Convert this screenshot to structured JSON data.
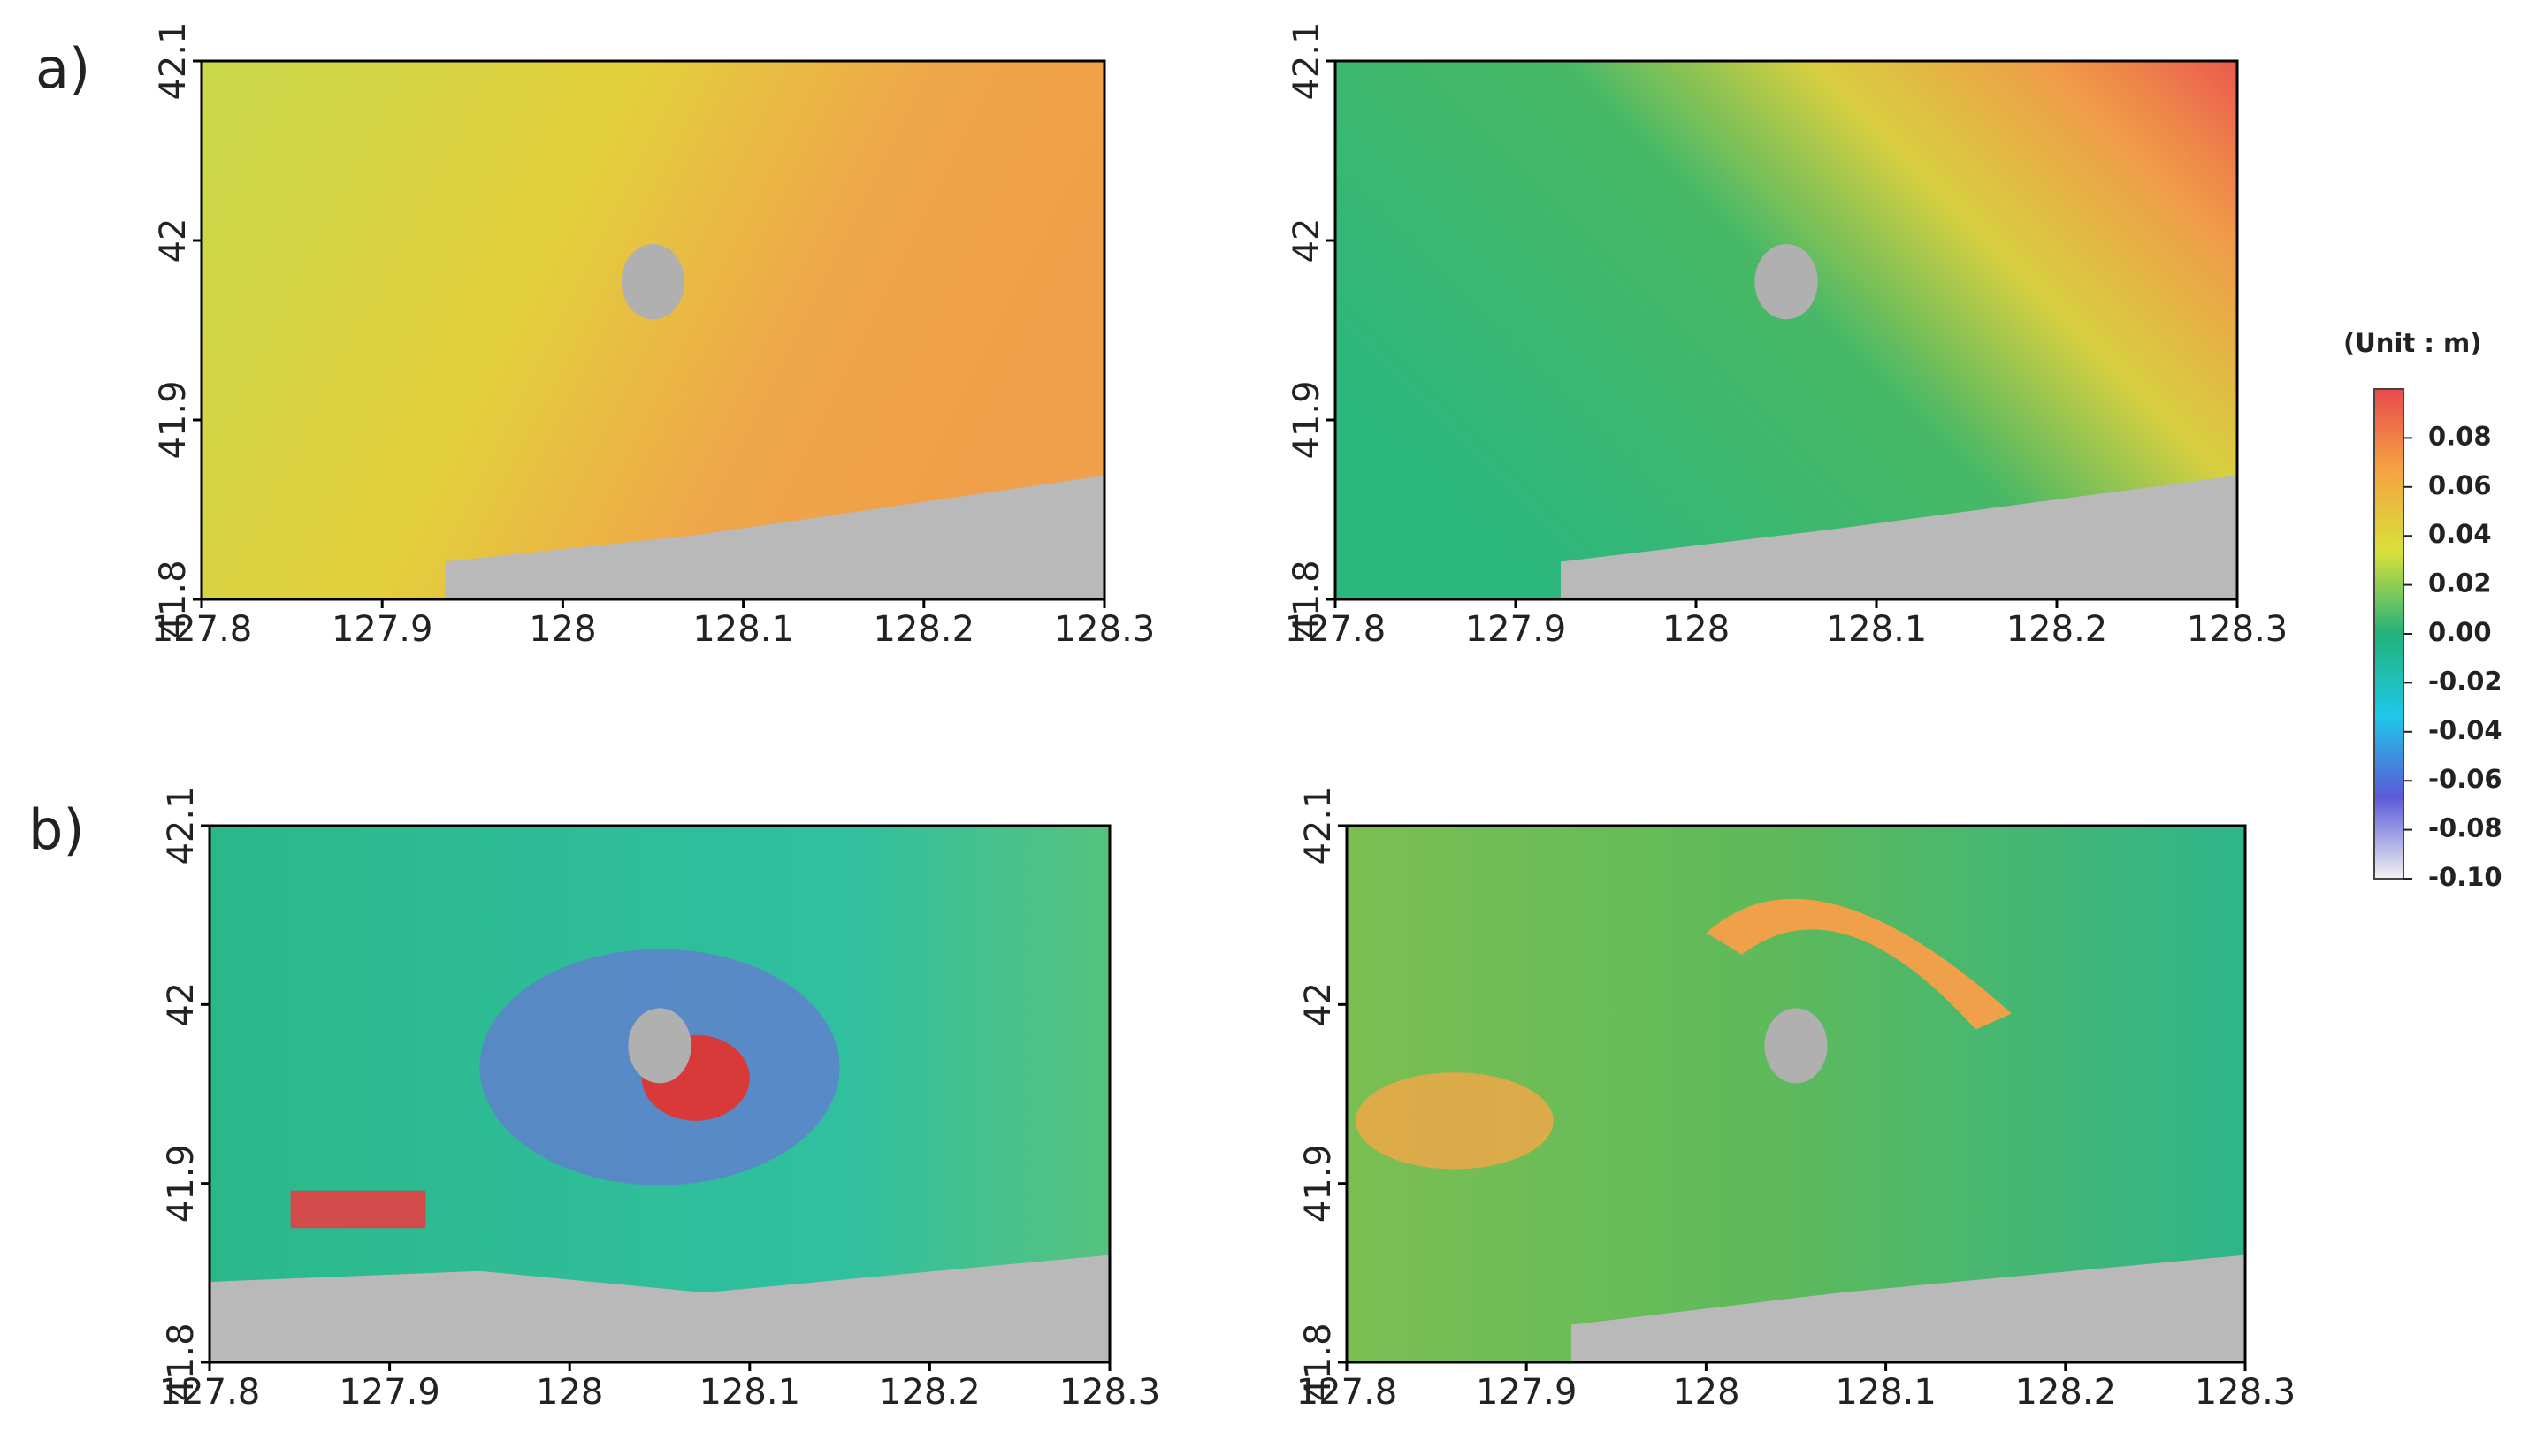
{
  "figure": {
    "row_labels": [
      "a)",
      "b)"
    ]
  },
  "chart_data": [
    {
      "type": "map",
      "xlim": [
        127.8,
        128.3
      ],
      "ylim": [
        41.8,
        42.1
      ],
      "xticks": [
        127.8,
        127.9,
        128,
        128.1,
        128.2,
        128.3
      ],
      "yticks": [
        41.8,
        41.9,
        42,
        42.1
      ]
    },
    {
      "type": "map",
      "xlim": [
        127.8,
        128.3
      ],
      "ylim": [
        41.8,
        42.1
      ],
      "xticks": [
        127.8,
        127.9,
        128,
        128.1,
        128.2,
        128.3
      ],
      "yticks": [
        41.8,
        41.9,
        42,
        42.1
      ]
    },
    {
      "type": "map",
      "xlim": [
        127.8,
        128.3
      ],
      "ylim": [
        41.8,
        42.1
      ],
      "xticks": [
        127.8,
        127.9,
        128,
        128.1,
        128.2,
        128.3
      ],
      "yticks": [
        41.8,
        41.9,
        42,
        42.1
      ]
    },
    {
      "type": "map",
      "xlim": [
        127.8,
        128.3
      ],
      "ylim": [
        41.8,
        42.1
      ],
      "xticks": [
        127.8,
        127.9,
        128,
        128.1,
        128.2,
        128.3
      ],
      "yticks": [
        41.8,
        41.9,
        42,
        42.1
      ]
    }
  ],
  "colorbar": {
    "title": "(Unit : m)",
    "lim": [
      -0.1,
      0.1
    ],
    "colors": [
      "#f2f2f2",
      "#5a5ad8",
      "#1ec8e8",
      "#22b27a",
      "#d8e03a",
      "#f5a442",
      "#e84a4e"
    ],
    "ticks": [
      0.08,
      0.06,
      0.04,
      0.02,
      {
        "value": 0,
        "label": "0.00"
      },
      -0.02,
      -0.04,
      -0.06,
      -0.08,
      {
        "value": -0.1,
        "label": "-0.10"
      }
    ]
  }
}
